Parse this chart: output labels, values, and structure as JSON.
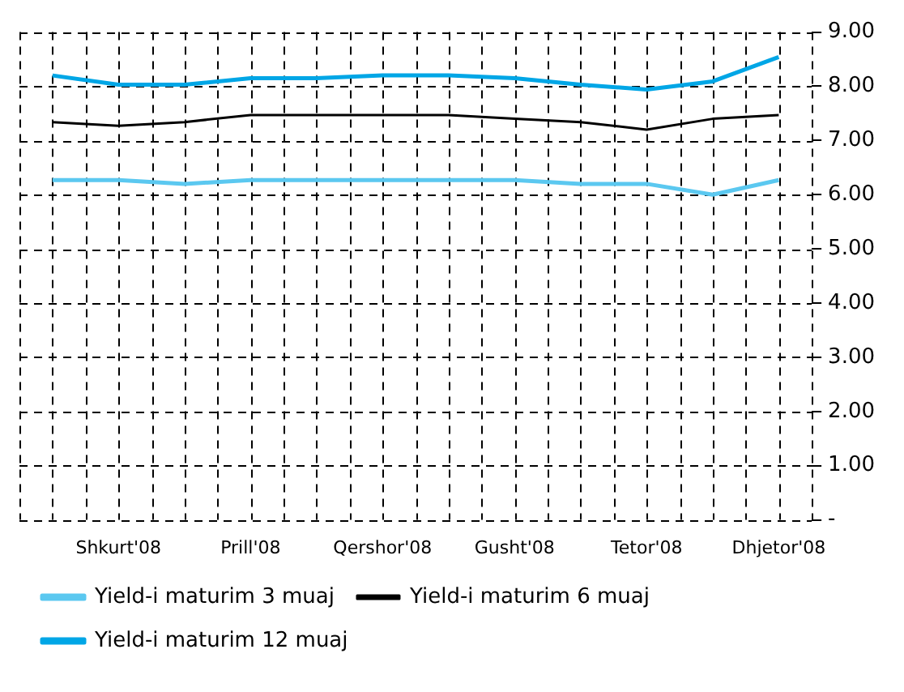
{
  "chart_data": {
    "type": "line",
    "categories": [
      null,
      "Shkurt'08",
      null,
      "Prill'08",
      null,
      "Qershor'08",
      null,
      "Gusht'08",
      null,
      "Tetor'08",
      null,
      "Dhjetor'08"
    ],
    "series": [
      {
        "name": "Yield-i maturim 3 muaj",
        "color": "#5bc8f0",
        "values": [
          6.27,
          6.27,
          6.2,
          6.27,
          6.27,
          6.27,
          6.27,
          6.27,
          6.2,
          6.2,
          6.0,
          6.27
        ]
      },
      {
        "name": "Yield-i maturim 6 muaj",
        "color": "#000000",
        "values": [
          7.34,
          7.27,
          7.34,
          7.47,
          7.47,
          7.47,
          7.47,
          7.4,
          7.34,
          7.2,
          7.4,
          7.47
        ]
      },
      {
        "name": "Yield-i maturim 12 muaj",
        "color": "#00a6e6",
        "values": [
          8.2,
          8.03,
          8.03,
          8.15,
          8.15,
          8.2,
          8.2,
          8.15,
          8.03,
          7.94,
          8.09,
          8.54
        ]
      }
    ],
    "ylim": [
      0,
      9
    ],
    "yticks": [
      {
        "value": 0,
        "label": "-"
      },
      {
        "value": 1,
        "label": "1.00"
      },
      {
        "value": 2,
        "label": "2.00"
      },
      {
        "value": 3,
        "label": "3.00"
      },
      {
        "value": 4,
        "label": "4.00"
      },
      {
        "value": 5,
        "label": "5.00"
      },
      {
        "value": 6,
        "label": "6.00"
      },
      {
        "value": 7,
        "label": "7.00"
      },
      {
        "value": 8,
        "label": "8.00"
      },
      {
        "value": 9,
        "label": "9.00"
      }
    ],
    "grid": true,
    "legend": "bottom",
    "marker": "none",
    "line_style": "solid"
  }
}
